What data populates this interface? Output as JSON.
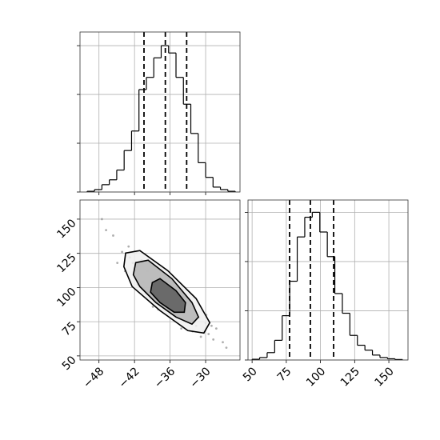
{
  "chart_data": [
    {
      "type": "histogram",
      "color": "#000000",
      "grid": true,
      "bins": [
        -50,
        -48.75,
        -47.5,
        -46.25,
        -45,
        -43.75,
        -42.5,
        -41.25,
        -40,
        -38.75,
        -37.5,
        -36.25,
        -35,
        -33.75,
        -32.5,
        -31.25,
        -30,
        -28.75,
        -27.5,
        -26.25,
        -25
      ],
      "values": [
        0.3,
        1,
        3,
        5,
        9,
        17,
        25,
        42,
        47,
        55,
        60,
        57,
        47,
        36,
        24,
        12,
        6,
        2,
        1,
        0.3
      ],
      "quantiles": [
        -40.4,
        -36.8,
        -33.2
      ],
      "xlim": [
        -51.2,
        -24.2
      ],
      "xticks": [
        -48,
        -42,
        -36,
        -30
      ],
      "ylim": [
        0,
        65.6
      ],
      "yticks": [
        0,
        20,
        40,
        60
      ]
    },
    {
      "type": "scatter",
      "color": "#8c8c8c",
      "grid": true,
      "contour_color": "#000000",
      "contour_fills": [
        "#f0f0f0",
        "#b4b4b4",
        "#5c5c5c"
      ],
      "x": [
        -44.1,
        -42.3,
        -40.5,
        -39.8,
        -38.2,
        -37.5,
        -36.9,
        -36.1,
        -35.4,
        -34.8,
        -33.9,
        -33.2,
        -32.5,
        -31.6,
        -30.4,
        -29.5,
        -28.7,
        -45.6,
        -46.8,
        -43.0,
        -41.2,
        -40.0,
        -39.1,
        -38.6,
        -37.9,
        -37.2,
        -36.5,
        -35.8,
        -35.1,
        -34.3,
        -33.6,
        -32.9,
        -32.0,
        -31.1,
        -30.0,
        -28.2,
        -27.1,
        -42.8,
        -44.9,
        -41.7,
        -39.4,
        -38.0,
        -36.7,
        -35.6,
        -34.6,
        -33.0,
        -31.9,
        -30.8,
        -29.9,
        -47.5,
        -26.5,
        -43.6,
        -40.8,
        -37.4,
        -34.1,
        -32.2,
        -29.0,
        -38.9,
        -36.3,
        -41.5
      ],
      "y": [
        126,
        118,
        104,
        112,
        99,
        96,
        90,
        95,
        86,
        88,
        80,
        84,
        75,
        72,
        68,
        66,
        62,
        138,
        142,
        130,
        110,
        97,
        106,
        92,
        101,
        88,
        99,
        92,
        81,
        94,
        76,
        88,
        80,
        78,
        74,
        70,
        60,
        122,
        118,
        126,
        118,
        84,
        104,
        101,
        82,
        92,
        86,
        64,
        80,
        150,
        56,
        112,
        120,
        109,
        70,
        68,
        72,
        86,
        84,
        102
      ],
      "contours": [
        {
          "x": [
            -43.5,
            -41.1,
            -36.4,
            -31.6,
            -29.3,
            -30.3,
            -33.0,
            -37.7,
            -42.4,
            -43.8
          ],
          "y": [
            125.2,
            127.0,
            112.4,
            91.9,
            74.3,
            66.7,
            68.5,
            83.1,
            100.7,
            115.3
          ]
        },
        {
          "x": [
            -41.8,
            -39.7,
            -35.7,
            -32.3,
            -31.2,
            -32.3,
            -35.0,
            -38.4,
            -41.1,
            -42.2
          ],
          "y": [
            118.2,
            120.0,
            106.5,
            89.0,
            78.4,
            73.2,
            78.4,
            89.0,
            100.7,
            109.4
          ]
        },
        {
          "x": [
            -39.0,
            -37.7,
            -35.0,
            -33.4,
            -33.6,
            -35.3,
            -37.7,
            -39.3
          ],
          "y": [
            103.6,
            106.5,
            97.7,
            89.0,
            81.9,
            81.9,
            89.0,
            96.6
          ]
        }
      ],
      "xlim": [
        -51.2,
        -24.2
      ],
      "xticks": [
        {
          "value": -48,
          "label": "−48"
        },
        {
          "value": -42,
          "label": "−42"
        },
        {
          "value": -36,
          "label": "−36"
        },
        {
          "value": -30,
          "label": "−30"
        }
      ],
      "ylim": [
        47,
        164
      ],
      "yticks": [
        50,
        75,
        100,
        125,
        150
      ]
    },
    {
      "type": "histogram",
      "color": "#000000",
      "grid": true,
      "bins": [
        50,
        55.5,
        61,
        66.5,
        72,
        77.5,
        83,
        88.5,
        94,
        99.5,
        105,
        110.5,
        116,
        121.5,
        127,
        132.5,
        138,
        143.5,
        149,
        154.5,
        160
      ],
      "values": [
        0.3,
        1,
        3,
        8,
        18,
        32,
        50,
        58,
        60,
        52,
        42,
        27,
        19,
        10,
        6,
        4,
        2,
        1,
        0.5,
        0.2
      ],
      "quantiles": [
        77.4,
        92.6,
        109.6
      ],
      "xlim": [
        47,
        164
      ],
      "xticks": [
        50,
        75,
        100,
        125,
        150
      ],
      "ylim": [
        0,
        65
      ],
      "yticks": [
        0,
        20,
        40,
        60
      ]
    }
  ]
}
